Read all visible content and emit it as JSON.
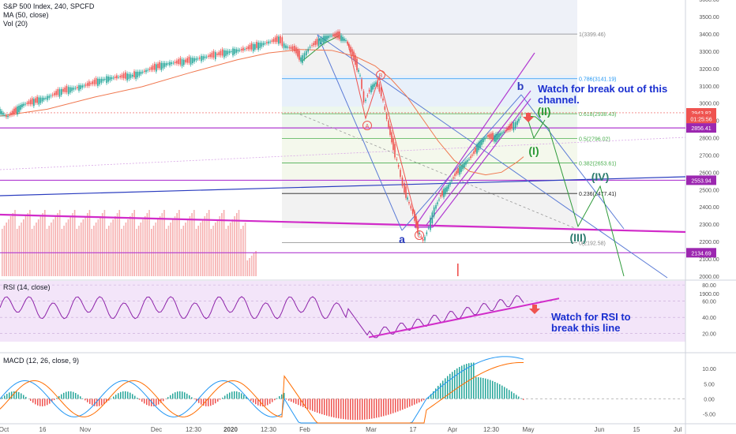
{
  "header": {
    "symbol_line": "S&P 500 Index, 240, SPCFD",
    "ma_label": "MA (50, close)",
    "vol_label": "Vol (20)"
  },
  "rsi_panel": {
    "label": "RSI (14, close)"
  },
  "macd_panel": {
    "label": "MACD (12, 26, close, 9)"
  },
  "annotations": {
    "channel_note_1": "Watch for break out of this",
    "channel_note_2": "channel.",
    "rsi_note_1": "Watch for RSI to",
    "rsi_note_2": "break this line",
    "wave_A": "A",
    "wave_B": "B",
    "wave_C": "C",
    "wave_a": "a",
    "wave_b": "b",
    "wave_I": "(I)",
    "wave_II": "(II)",
    "wave_III": "(III)",
    "wave_IV": "(IV)"
  },
  "price_badges": {
    "last_price": "2943.82",
    "countdown": "01:25:56",
    "level_2856": "2856.41",
    "level_2553": "2553.94",
    "level_2134": "2134.69"
  },
  "colors": {
    "up": "#26a69a",
    "down": "#ef5350",
    "ma": "#f07850",
    "purple": "#b13bd1",
    "magenta": "#d12bc9",
    "blue_trend": "#2a3cbf",
    "note_blue": "#1a2fd0",
    "rsi_line": "#8e24aa",
    "rsi_bg": "#f3e5f9",
    "green_proj": "#2e9b3a",
    "fib_zone": "#eef1f8"
  },
  "chart_data": {
    "type": "candlestick",
    "title": "S&P 500 Index, 240, SPCFD",
    "xaxis_ticks": [
      "Oct",
      "16",
      "Nov",
      "Dec",
      "12:30",
      "2020",
      "12:30",
      "Feb",
      "Mar",
      "17",
      "Apr",
      "12:30",
      "May",
      "Jun",
      "15",
      "Jul"
    ],
    "price_axis": {
      "ylim": [
        1850,
        3650
      ],
      "ticks": [
        3600,
        3500,
        3400,
        3300,
        3200,
        3100,
        3000,
        2900,
        2800,
        2700,
        2600,
        2500,
        2400,
        2300,
        2200,
        2100,
        2000,
        1900
      ]
    },
    "fibonacci": [
      {
        "ratio": "1",
        "price": 3399.46,
        "label": "1(3399.46)"
      },
      {
        "ratio": "0.786",
        "price": 3141.19,
        "label": "0.786(3141.19)"
      },
      {
        "ratio": "0.618",
        "price": 2938.43,
        "label": "0.618(2938.43)"
      },
      {
        "ratio": "0.5",
        "price": 2796.02,
        "label": "0.5(2796.02)"
      },
      {
        "ratio": "0.382",
        "price": 2653.61,
        "label": "0.382(2653.61)"
      },
      {
        "ratio": "0.236",
        "price": 2477.41,
        "label": "0.236(2477.41)"
      },
      {
        "ratio": "0",
        "price": 2192.58,
        "label": "0(2192.58)"
      }
    ],
    "price_path": [
      [
        0,
        2960
      ],
      [
        10,
        2920
      ],
      [
        20,
        2950
      ],
      [
        30,
        2990
      ],
      [
        45,
        3010
      ],
      [
        60,
        3030
      ],
      [
        80,
        3070
      ],
      [
        100,
        3090
      ],
      [
        115,
        3110
      ],
      [
        135,
        3140
      ],
      [
        150,
        3150
      ],
      [
        170,
        3160
      ],
      [
        185,
        3185
      ],
      [
        200,
        3210
      ],
      [
        215,
        3230
      ],
      [
        235,
        3240
      ],
      [
        255,
        3260
      ],
      [
        275,
        3280
      ],
      [
        295,
        3300
      ],
      [
        310,
        3310
      ],
      [
        325,
        3330
      ],
      [
        340,
        3350
      ],
      [
        355,
        3370
      ],
      [
        362,
        3330
      ],
      [
        375,
        3310
      ],
      [
        383,
        3250
      ],
      [
        395,
        3330
      ],
      [
        410,
        3370
      ],
      [
        420,
        3390
      ],
      [
        430,
        3390
      ],
      [
        440,
        3360
      ],
      [
        450,
        3260
      ],
      [
        458,
        3150
      ],
      [
        463,
        3000
      ],
      [
        470,
        3080
      ],
      [
        478,
        3120
      ],
      [
        485,
        3050
      ],
      [
        492,
        2900
      ],
      [
        500,
        2740
      ],
      [
        507,
        2620
      ],
      [
        512,
        2520
      ],
      [
        518,
        2440
      ],
      [
        525,
        2360
      ],
      [
        531,
        2260
      ],
      [
        538,
        2200
      ],
      [
        545,
        2290
      ],
      [
        552,
        2390
      ],
      [
        560,
        2470
      ],
      [
        568,
        2510
      ],
      [
        578,
        2590
      ],
      [
        588,
        2640
      ],
      [
        598,
        2690
      ],
      [
        608,
        2760
      ],
      [
        618,
        2810
      ],
      [
        628,
        2800
      ],
      [
        638,
        2830
      ],
      [
        648,
        2860
      ],
      [
        655,
        2880
      ],
      [
        663,
        2940
      ]
    ],
    "ma50_path": [
      [
        0,
        2925
      ],
      [
        60,
        2965
      ],
      [
        120,
        3035
      ],
      [
        180,
        3095
      ],
      [
        240,
        3175
      ],
      [
        300,
        3250
      ],
      [
        340,
        3290
      ],
      [
        380,
        3310
      ],
      [
        420,
        3305
      ],
      [
        450,
        3270
      ],
      [
        475,
        3215
      ],
      [
        495,
        3140
      ],
      [
        515,
        3040
      ],
      [
        535,
        2910
      ],
      [
        555,
        2780
      ],
      [
        575,
        2670
      ],
      [
        595,
        2605
      ],
      [
        615,
        2585
      ],
      [
        635,
        2600
      ],
      [
        655,
        2660
      ],
      [
        663,
        2690
      ]
    ],
    "rsi": {
      "ylim": [
        10,
        85
      ],
      "ticks": [
        80,
        60,
        40,
        20
      ],
      "trendline": [
        [
          467,
          15.4
        ],
        [
          708,
          63.4
        ]
      ]
    },
    "macd": {
      "ylim": [
        -8,
        15
      ],
      "ticks": [
        10,
        5,
        0,
        -5
      ]
    }
  }
}
